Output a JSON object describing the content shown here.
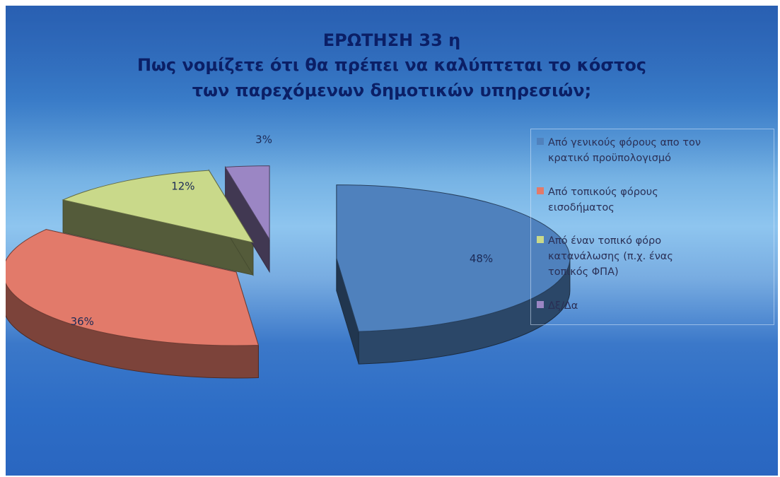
{
  "chart_data": {
    "type": "pie",
    "title": "ΕΡΩΤΗΣΗ 33 η",
    "subtitle_lines": [
      "Πως νομίζετε ότι θα πρέπει να καλύπτεται το κόστος",
      "των παρεχόμενων δημοτικών υπηρεσιών;"
    ],
    "three_d": true,
    "exploded": true,
    "legend_position": "right",
    "slices": [
      {
        "label": "Από γενικούς φόρους απο τον κρατικό προϋπολογισμό",
        "value": 48,
        "data_label": "48%",
        "color": "#4f81bd"
      },
      {
        "label": "Από τοπικούς φόρους εισοδήματος",
        "value": 36,
        "data_label": "36%",
        "color": "#e27a6a"
      },
      {
        "label": "Από έναν τοπικό φόρο κατανάλωσης (π.χ. ένας τοπικός ΦΠΑ)",
        "value": 12,
        "data_label": "12%",
        "color": "#c9d98a"
      },
      {
        "label": "Δξ/Δα",
        "value": 3,
        "data_label": "3%",
        "color": "#9b86c4"
      }
    ],
    "legend_lines": [
      "Από γενικούς φόρους απο τον\nκρατικό προϋπολογισμό",
      "Από τοπικούς φόρους\nεισοδήματος",
      "Από έναν τοπικό φόρο\nκατανάλωσης (π.χ. ένας\nτοπικός ΦΠΑ)",
      "Δξ/Δα"
    ]
  }
}
